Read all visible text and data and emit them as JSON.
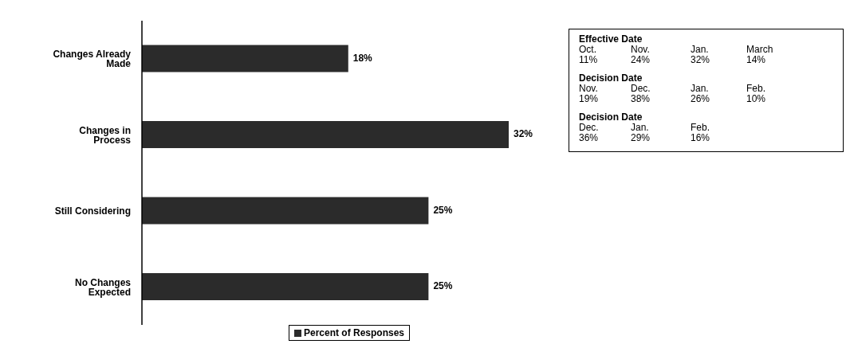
{
  "chart_data": [
    {
      "type": "bar",
      "orientation": "horizontal",
      "categories": [
        "Changes Already Made",
        "Changes in Process",
        "Still Considering",
        "No Changes Expected"
      ],
      "series": [
        {
          "name": "Percent of Responses",
          "color": "#2b2b2b",
          "values": [
            18,
            32,
            25,
            25
          ],
          "value_labels": [
            "18%",
            "32%",
            "25%",
            "25%"
          ]
        }
      ],
      "legend": "bottom"
    },
    {
      "type": "other",
      "title": "Effective Date",
      "categories": [
        "Oct.",
        "Nov.",
        "Jan.",
        "March"
      ],
      "value_labels": [
        "11%",
        "24%",
        "32%",
        "14%"
      ]
    },
    {
      "type": "other",
      "title": "Decision Date",
      "categories": [
        "Nov.",
        "Dec.",
        "Jan.",
        "Feb."
      ],
      "value_labels": [
        "19%",
        "38%",
        "26%",
        "10%"
      ]
    },
    {
      "type": "other",
      "title": "Decision Date",
      "categories": [
        "Dec.",
        "Jan.",
        "Feb."
      ],
      "value_labels": [
        "36%",
        "29%",
        "16%"
      ]
    }
  ]
}
